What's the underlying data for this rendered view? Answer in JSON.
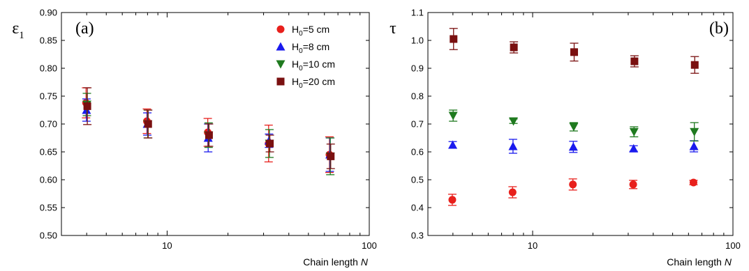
{
  "chart_data": [
    {
      "type": "scatter",
      "panel_label": "(a)",
      "ylabel": "ε",
      "ylabel_sub": "1",
      "xlabel": "Chain length",
      "xlabel_var": "N",
      "x_scale": "log",
      "xlim": [
        3,
        100
      ],
      "ylim": [
        0.5,
        0.9
      ],
      "x_ticks": [
        10,
        100
      ],
      "y_ticks": [
        0.5,
        0.55,
        0.6,
        0.65,
        0.7,
        0.75,
        0.8,
        0.85,
        0.9
      ],
      "y_tick_labels": [
        "0.50",
        "0.55",
        "0.60",
        "0.65",
        "0.70",
        "0.75",
        "0.80",
        "0.85",
        "0.90"
      ],
      "grid": false,
      "legend_position": "top-right",
      "legend": [
        {
          "main": "H",
          "sub": "0",
          "rest": "=5 cm"
        },
        {
          "main": "H",
          "sub": "0",
          "rest": "=8 cm"
        },
        {
          "main": "H",
          "sub": "0",
          "rest": "=10 cm"
        },
        {
          "main": "H",
          "sub": "0",
          "rest": "=20 cm"
        }
      ],
      "series": [
        {
          "name": "H0=5 cm",
          "color": "#e8201c",
          "marker": "circle",
          "x": [
            4,
            8,
            16,
            32,
            64
          ],
          "y": [
            0.738,
            0.705,
            0.685,
            0.665,
            0.645
          ],
          "err": [
            0.027,
            0.022,
            0.025,
            0.033,
            0.032
          ]
        },
        {
          "name": "H0=8 cm",
          "color": "#1a1aee",
          "marker": "triangle-up",
          "x": [
            4,
            8,
            16,
            32,
            64
          ],
          "y": [
            0.725,
            0.7,
            0.675,
            0.67,
            0.645
          ],
          "err": [
            0.02,
            0.02,
            0.025,
            0.012,
            0.03
          ]
        },
        {
          "name": "H0=10 cm",
          "color": "#1f7a1f",
          "marker": "triangle-down",
          "x": [
            4,
            8,
            16,
            32,
            64
          ],
          "y": [
            0.735,
            0.7,
            0.68,
            0.665,
            0.642
          ],
          "err": [
            0.02,
            0.025,
            0.022,
            0.025,
            0.033
          ]
        },
        {
          "name": "H0=20 cm",
          "color": "#7a1010",
          "marker": "square",
          "x": [
            4,
            8,
            16,
            32,
            64
          ],
          "y": [
            0.732,
            0.7,
            0.68,
            0.665,
            0.642
          ],
          "err": [
            0.033,
            0.025,
            0.02,
            0.015,
            0.022
          ]
        }
      ]
    },
    {
      "type": "scatter",
      "panel_label": "(b)",
      "ylabel": "τ",
      "ylabel_sub": "",
      "xlabel": "Chain length",
      "xlabel_var": "N",
      "x_scale": "log",
      "xlim": [
        3,
        100
      ],
      "ylim": [
        0.3,
        1.1
      ],
      "x_ticks": [
        10,
        100
      ],
      "y_ticks": [
        0.3,
        0.4,
        0.5,
        0.6,
        0.7,
        0.8,
        0.9,
        1.0,
        1.1
      ],
      "y_tick_labels": [
        "0.3",
        "0.4",
        "0.5",
        "0.6",
        "0.7",
        "0.8",
        "0.9",
        "1.0",
        "1.1"
      ],
      "grid": false,
      "series": [
        {
          "name": "H0=5 cm",
          "color": "#e8201c",
          "marker": "circle",
          "x": [
            4,
            8,
            16,
            32,
            64
          ],
          "y": [
            0.428,
            0.455,
            0.483,
            0.483,
            0.49
          ],
          "err": [
            0.02,
            0.02,
            0.02,
            0.015,
            0.008
          ]
        },
        {
          "name": "H0=8 cm",
          "color": "#1a1aee",
          "marker": "triangle-up",
          "x": [
            4,
            8,
            16,
            32,
            64
          ],
          "y": [
            0.625,
            0.62,
            0.618,
            0.612,
            0.62
          ],
          "err": [
            0.012,
            0.025,
            0.02,
            0.01,
            0.02
          ]
        },
        {
          "name": "H0=10 cm",
          "color": "#1f7a1f",
          "marker": "triangle-down",
          "x": [
            4,
            8,
            16,
            32,
            64
          ],
          "y": [
            0.73,
            0.71,
            0.69,
            0.672,
            0.672
          ],
          "err": [
            0.02,
            0.008,
            0.015,
            0.018,
            0.033
          ]
        },
        {
          "name": "H0=20 cm",
          "color": "#7a1010",
          "marker": "square",
          "x": [
            4,
            8,
            16,
            32,
            64
          ],
          "y": [
            1.005,
            0.975,
            0.958,
            0.925,
            0.912
          ],
          "err": [
            0.038,
            0.02,
            0.032,
            0.02,
            0.03
          ]
        }
      ]
    }
  ]
}
